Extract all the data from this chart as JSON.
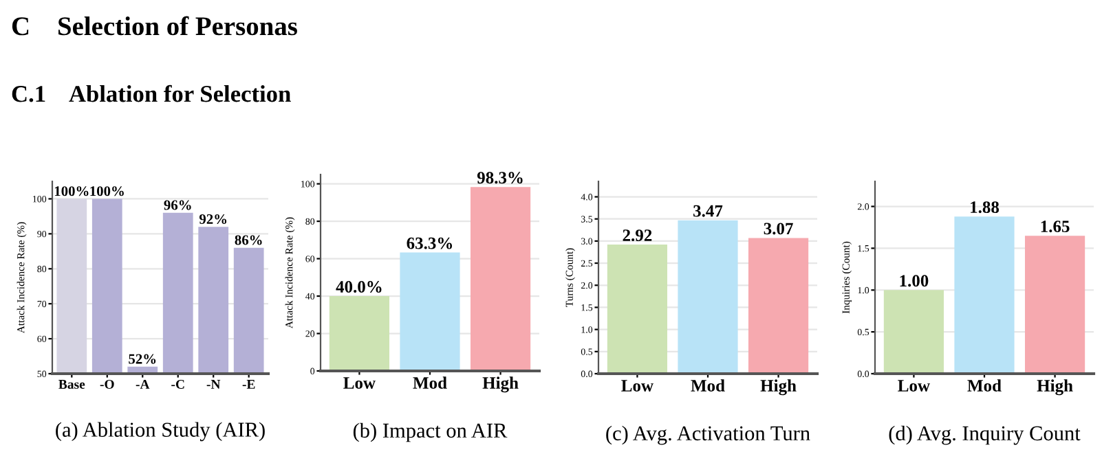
{
  "chart_data": [
    {
      "type": "bar",
      "xlabel": "(a) Ablation Study (AIR)",
      "ylabel": "Attack Incidence Rate (%)",
      "annotations": [
        "C    Selection of Personas",
        "C.1    Ablation for Selection"
      ],
      "categories": [
        "Base",
        "-O",
        "-A",
        "-C",
        "-N",
        "-E"
      ],
      "values": [
        100,
        100,
        52,
        96,
        92,
        86
      ],
      "colors": [
        "#d6d4e3",
        "#b4b0d6",
        "#b4b0d6",
        "#b4b0d6",
        "#b4b0d6",
        "#b4b0d6"
      ],
      "value_labels": [
        "100%",
        "100%",
        "52%",
        "96%",
        "92%",
        "86%"
      ],
      "ylim": [
        50,
        105
      ],
      "yticks": [
        50,
        60,
        70,
        80,
        90,
        100
      ],
      "grid": "y"
    },
    {
      "type": "bar",
      "xlabel": "(b) Impact on AIR",
      "ylabel": "Attack Incidence Rate (%)",
      "categories": [
        "Low",
        "Mod",
        "High"
      ],
      "values": [
        40.0,
        63.3,
        98.3
      ],
      "colors": [
        "#cde3b3",
        "#b8e3f7",
        "#f6a9af"
      ],
      "value_labels": [
        "40.0%",
        "63.3%",
        "98.3%"
      ],
      "ylim": [
        0,
        105
      ],
      "yticks": [
        0,
        20,
        40,
        60,
        80,
        100
      ],
      "grid": "y"
    },
    {
      "type": "bar",
      "xlabel": "(c) Avg. Activation Turn",
      "ylabel": "Turns (Count)",
      "categories": [
        "Low",
        "Mod",
        "High"
      ],
      "values": [
        2.92,
        3.47,
        3.07
      ],
      "colors": [
        "#cde3b3",
        "#b8e3f7",
        "#f6a9af"
      ],
      "value_labels": [
        "2.92",
        "3.47",
        "3.07"
      ],
      "ylim": [
        0,
        4.35
      ],
      "yticks": [
        {
          "value": 0,
          "label": "0.0"
        },
        0.5,
        {
          "value": 1,
          "label": "1.0"
        },
        1.5,
        {
          "value": 2,
          "label": "2.0"
        },
        2.5,
        {
          "value": 3,
          "label": "3.0"
        },
        3.5,
        {
          "value": 4,
          "label": "4.0"
        }
      ],
      "grid": "y"
    },
    {
      "type": "bar",
      "xlabel": "(d) Avg. Inquiry Count",
      "ylabel": "Inquiries (Count)",
      "categories": [
        "Low",
        "Mod",
        "High"
      ],
      "values": [
        1.0,
        1.88,
        1.65
      ],
      "colors": [
        "#cde3b3",
        "#b8e3f7",
        "#f6a9af"
      ],
      "value_labels": [
        "1.00",
        "1.88",
        "1.65"
      ],
      "ylim": [
        0,
        2.3
      ],
      "yticks": [
        {
          "value": 0,
          "label": "0.0"
        },
        0.5,
        {
          "value": 1,
          "label": "1.0"
        },
        1.5,
        {
          "value": 2,
          "label": "2.0"
        }
      ],
      "grid": "y"
    }
  ]
}
